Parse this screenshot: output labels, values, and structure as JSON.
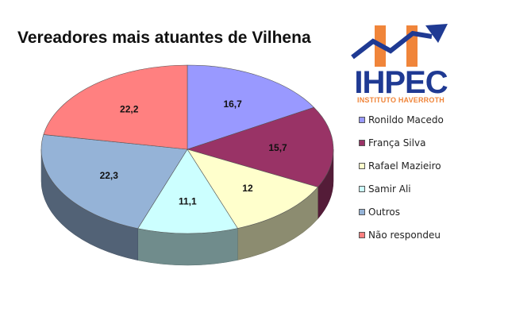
{
  "chart_data": {
    "type": "pie",
    "title": "Vereadores mais atuantes de Vilhena",
    "slices": [
      {
        "name": "Ronildo Macedo",
        "value": 16.7,
        "label": "16,7",
        "color": "#9999ff"
      },
      {
        "name": "França Silva",
        "value": 15.7,
        "label": "15,7",
        "color": "#993366"
      },
      {
        "name": "Rafael Mazieiro",
        "value": 12,
        "label": "12",
        "color": "#ffffcc"
      },
      {
        "name": "Samir Ali",
        "value": 11.1,
        "label": "11,1",
        "color": "#ccffff"
      },
      {
        "name": "Outros",
        "value": 22.3,
        "label": "22,3",
        "color": "#95b3d7"
      },
      {
        "name": "Não respondeu",
        "value": 22.2,
        "label": "22,2",
        "color": "#ff8080"
      }
    ],
    "legend_position": "right",
    "style": "3d-pie"
  },
  "logo": {
    "text_main": "IHPEC",
    "text_sub": "INSTITUTO HAVERROTH",
    "colors": {
      "blue": "#1f3a93",
      "orange": "#f0853a"
    }
  }
}
